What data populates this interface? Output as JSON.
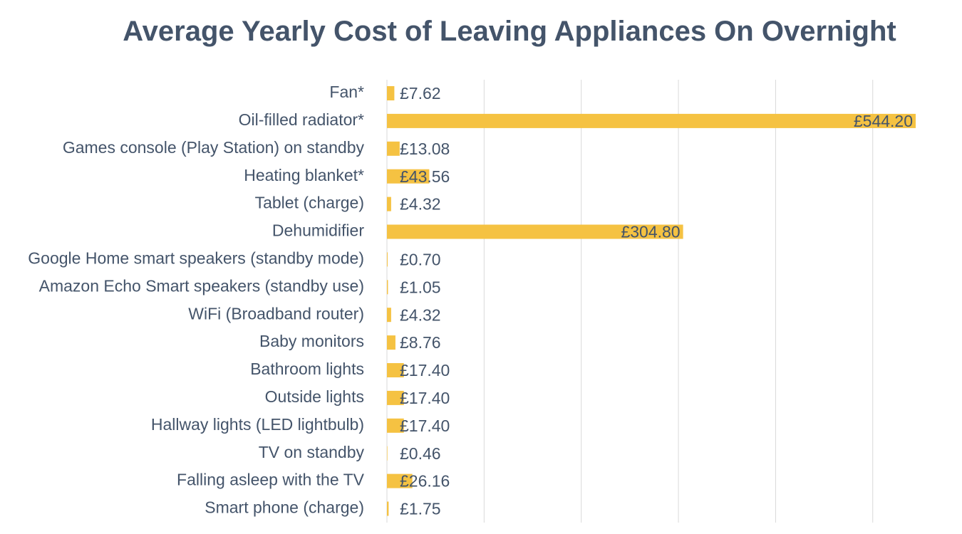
{
  "chart_data": {
    "type": "bar",
    "orientation": "horizontal",
    "title": "Average Yearly Cost of Leaving Appliances On Overnight",
    "categories": [
      "Fan*",
      "Oil-filled radiator*",
      "Games console (Play Station) on standby",
      "Heating blanket*",
      "Tablet (charge)",
      "Dehumidifier",
      "Google Home smart speakers (standby mode)",
      "Amazon Echo Smart speakers (standby use)",
      "WiFi (Broadband router)",
      "Baby monitors",
      "Bathroom lights",
      "Outside lights",
      "Hallway lights (LED lightbulb)",
      "TV on standby",
      "Falling asleep with the TV",
      "Smart phone (charge)"
    ],
    "values": [
      7.62,
      544.2,
      13.08,
      43.56,
      4.32,
      304.8,
      0.7,
      1.05,
      4.32,
      8.76,
      17.4,
      17.4,
      17.4,
      0.46,
      26.16,
      1.75
    ],
    "data_labels": [
      "£7.62",
      "£544.20",
      "£13.08",
      "£43.56",
      "£4.32",
      "£304.80",
      "£0.70",
      "£1.05",
      "£4.32",
      "£8.76",
      "£17.40",
      "£17.40",
      "£17.40",
      "£0.46",
      "£26.16",
      "£1.75"
    ],
    "xlim": [
      0,
      600
    ],
    "gridline_interval": 100,
    "grid": "vertical",
    "bar_color": "#f5c242",
    "text_color": "#44546a",
    "grid_color": "#d9d9d9"
  }
}
